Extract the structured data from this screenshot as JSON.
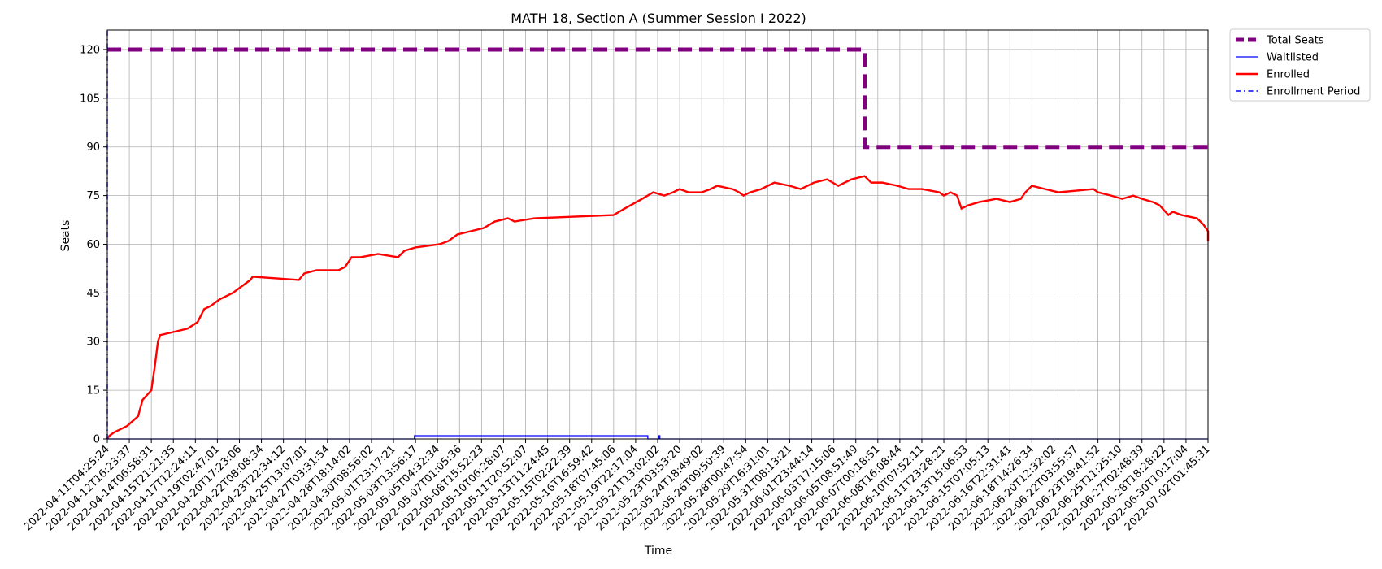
{
  "chart_data": {
    "type": "line",
    "title": "MATH 18, Section A (Summer Session I 2022)",
    "xlabel": "Time",
    "ylabel": "Seats",
    "ylim": [
      0,
      126
    ],
    "yticks": [
      0,
      15,
      30,
      45,
      60,
      75,
      90,
      105,
      120
    ],
    "grid": true,
    "legend_position": "outside top-right",
    "x_tick_labels": [
      "2022-04-11T04:25:24",
      "2022-04-12T16:23:37",
      "2022-04-14T06:58:31",
      "2022-04-15T21:21:35",
      "2022-04-17T12:24:11",
      "2022-04-19T02:47:01",
      "2022-04-20T17:23:06",
      "2022-04-22T08:08:34",
      "2022-04-23T22:34:12",
      "2022-04-25T13:07:01",
      "2022-04-27T03:31:54",
      "2022-04-28T18:14:02",
      "2022-04-30T08:56:02",
      "2022-05-01T23:17:21",
      "2022-05-03T13:56:17",
      "2022-05-05T04:32:34",
      "2022-05-07T01:05:36",
      "2022-05-08T15:52:23",
      "2022-05-10T06:28:07",
      "2022-05-11T20:52:07",
      "2022-05-13T11:24:45",
      "2022-05-15T02:22:39",
      "2022-05-16T16:59:42",
      "2022-05-18T07:45:06",
      "2022-05-19T22:17:04",
      "2022-05-21T13:02:02",
      "2022-05-23T03:53:20",
      "2022-05-24T18:49:02",
      "2022-05-26T09:50:39",
      "2022-05-28T00:47:54",
      "2022-05-29T16:31:01",
      "2022-05-31T08:13:21",
      "2022-06-01T23:44:14",
      "2022-06-03T17:15:06",
      "2022-06-05T08:51:49",
      "2022-06-07T00:18:51",
      "2022-06-08T16:08:44",
      "2022-06-10T07:52:11",
      "2022-06-11T23:28:21",
      "2022-06-13T15:06:53",
      "2022-06-15T07:05:13",
      "2022-06-16T22:31:41",
      "2022-06-18T14:26:34",
      "2022-06-20T12:32:02",
      "2022-06-22T03:55:57",
      "2022-06-23T19:41:52",
      "2022-06-25T11:25:10",
      "2022-06-27T02:48:39",
      "2022-06-28T18:28:22",
      "2022-06-30T10:17:04",
      "2022-07-02T01:45:31"
    ],
    "series": [
      {
        "name": "Total Seats",
        "color": "#800080",
        "style": "dashed-thick",
        "points": [
          [
            0,
            120
          ],
          [
            34.4,
            120
          ],
          [
            34.4,
            90
          ],
          [
            50,
            90
          ]
        ]
      },
      {
        "name": "Waitlisted",
        "color": "#0000ff",
        "style": "solid-thin",
        "points": [
          [
            0,
            0
          ],
          [
            13.95,
            0
          ],
          [
            13.95,
            1
          ],
          [
            24.55,
            1
          ],
          [
            24.55,
            0
          ],
          [
            25.05,
            0
          ],
          [
            25.05,
            1
          ],
          [
            25.1,
            1
          ],
          [
            25.1,
            0
          ],
          [
            50,
            0
          ]
        ]
      },
      {
        "name": "Enrolled",
        "color": "#ff0000",
        "style": "solid",
        "points": [
          [
            0,
            0
          ],
          [
            0.1,
            1
          ],
          [
            0.3,
            2
          ],
          [
            0.9,
            4
          ],
          [
            1.4,
            7
          ],
          [
            1.6,
            12
          ],
          [
            2.0,
            15
          ],
          [
            2.15,
            22
          ],
          [
            2.3,
            30
          ],
          [
            2.4,
            32
          ],
          [
            3.65,
            34
          ],
          [
            4.1,
            36
          ],
          [
            4.4,
            40
          ],
          [
            4.7,
            41
          ],
          [
            5.1,
            43
          ],
          [
            5.4,
            44
          ],
          [
            5.7,
            45
          ],
          [
            6.5,
            49
          ],
          [
            6.6,
            50
          ],
          [
            8.7,
            49
          ],
          [
            8.95,
            51
          ],
          [
            9.5,
            52
          ],
          [
            10.5,
            52
          ],
          [
            10.8,
            53
          ],
          [
            11.1,
            56
          ],
          [
            11.5,
            56
          ],
          [
            12.3,
            57
          ],
          [
            13.2,
            56
          ],
          [
            13.5,
            58
          ],
          [
            14.0,
            59
          ],
          [
            15.1,
            60
          ],
          [
            15.5,
            61
          ],
          [
            15.9,
            63
          ],
          [
            16.5,
            64
          ],
          [
            17.1,
            65
          ],
          [
            17.6,
            67
          ],
          [
            18.2,
            68
          ],
          [
            18.5,
            67
          ],
          [
            19.4,
            68
          ],
          [
            23.0,
            69
          ],
          [
            23.5,
            71
          ],
          [
            24.3,
            74
          ],
          [
            24.8,
            76
          ],
          [
            25.3,
            75
          ],
          [
            25.7,
            76
          ],
          [
            26.0,
            77
          ],
          [
            26.4,
            76
          ],
          [
            27.0,
            76
          ],
          [
            27.4,
            77
          ],
          [
            27.7,
            78
          ],
          [
            28.4,
            77
          ],
          [
            28.7,
            76
          ],
          [
            28.9,
            75
          ],
          [
            29.2,
            76
          ],
          [
            29.7,
            77
          ],
          [
            30.3,
            79
          ],
          [
            31.0,
            78
          ],
          [
            31.5,
            77
          ],
          [
            32.1,
            79
          ],
          [
            32.7,
            80
          ],
          [
            33.2,
            78
          ],
          [
            33.8,
            80
          ],
          [
            34.4,
            81
          ],
          [
            34.7,
            79
          ],
          [
            35.2,
            79
          ],
          [
            35.9,
            78
          ],
          [
            36.4,
            77
          ],
          [
            37.0,
            77
          ],
          [
            37.8,
            76
          ],
          [
            38.0,
            75
          ],
          [
            38.3,
            76
          ],
          [
            38.6,
            75
          ],
          [
            38.8,
            71
          ],
          [
            39.1,
            72
          ],
          [
            39.6,
            73
          ],
          [
            40.4,
            74
          ],
          [
            41.0,
            73
          ],
          [
            41.5,
            74
          ],
          [
            41.7,
            76
          ],
          [
            42.0,
            78
          ],
          [
            42.6,
            77
          ],
          [
            43.2,
            76
          ],
          [
            44.8,
            77
          ],
          [
            45.0,
            76
          ],
          [
            45.6,
            75
          ],
          [
            46.1,
            74
          ],
          [
            46.6,
            75
          ],
          [
            47.0,
            74
          ],
          [
            47.5,
            73
          ],
          [
            47.8,
            72
          ],
          [
            48.2,
            69
          ],
          [
            48.4,
            70
          ],
          [
            48.8,
            69
          ],
          [
            49.5,
            68
          ],
          [
            49.8,
            66
          ],
          [
            50.3,
            64
          ],
          [
            50.7,
            63
          ],
          [
            51.4,
            62
          ],
          [
            52.8,
            62
          ],
          [
            53.0,
            63
          ],
          [
            53.3,
            62
          ],
          [
            53.6,
            61
          ],
          [
            53.65,
            61
          ]
        ]
      },
      {
        "name": "Enrollment Period",
        "color": "#0000ff",
        "style": "dashdot",
        "points": [
          [
            0,
            0
          ],
          [
            0,
            126
          ]
        ]
      }
    ]
  },
  "legend": {
    "items": [
      {
        "label": "Total Seats",
        "color": "#800080",
        "style": "dashed-thick"
      },
      {
        "label": "Waitlisted",
        "color": "#0000ff",
        "style": "solid-thin"
      },
      {
        "label": "Enrolled",
        "color": "#ff0000",
        "style": "solid"
      },
      {
        "label": "Enrollment Period",
        "color": "#0000ff",
        "style": "dashdot"
      }
    ]
  }
}
